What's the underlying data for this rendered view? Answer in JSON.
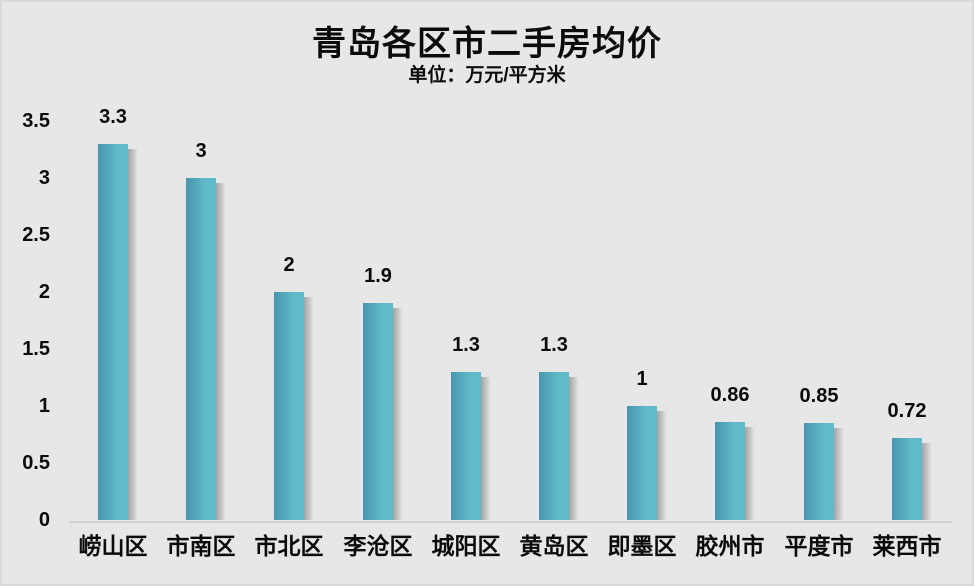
{
  "header": {
    "title": "青岛各区市二手房均价",
    "subtitle": "单位：万元/平方米"
  },
  "chart_data": {
    "type": "bar",
    "title": "青岛各区市二手房均价",
    "subtitle": "单位：万元/平方米",
    "categories": [
      "崂山区",
      "市南区",
      "市北区",
      "李沧区",
      "城阳区",
      "黄岛区",
      "即墨区",
      "胶州市",
      "平度市",
      "莱西市"
    ],
    "values": [
      3.3,
      3,
      2,
      1.9,
      1.3,
      1.3,
      1,
      0.86,
      0.85,
      0.72
    ],
    "data_labels": [
      "3.3",
      "3",
      "2",
      "1.9",
      "1.3",
      "1.3",
      "1",
      "0.86",
      "0.85",
      "0.72"
    ],
    "xlabel": "",
    "ylabel": "",
    "ylim": [
      0,
      3.5
    ],
    "ytick_interval": 0.5,
    "yticks": [
      "0",
      "0.5",
      "1",
      "1.5",
      "2",
      "2.5",
      "3",
      "3.5"
    ],
    "grid": false,
    "legend": false,
    "colors": {
      "background": "#e7e7e7",
      "bar_gradient_start": "#4a95ae",
      "bar_gradient_end": "#5fbbc9",
      "bar_shadow": "#606060",
      "axis_line": "#d0d0d0",
      "text": "#0b0b0b"
    }
  }
}
